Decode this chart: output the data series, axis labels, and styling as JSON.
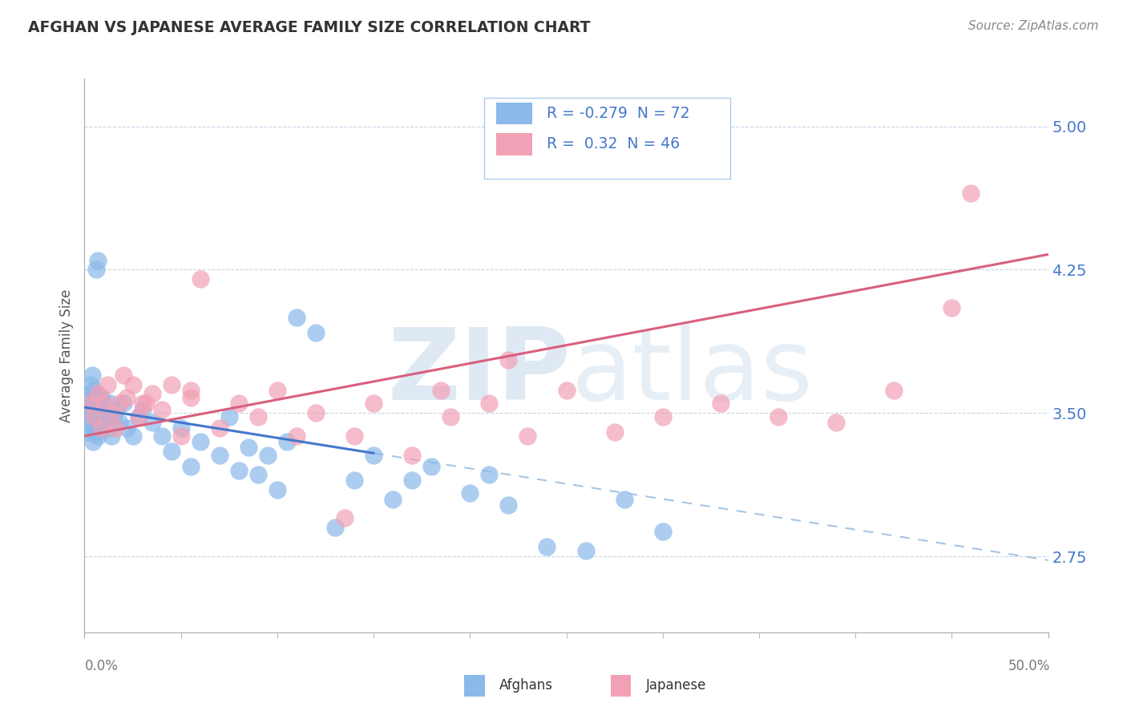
{
  "title": "AFGHAN VS JAPANESE AVERAGE FAMILY SIZE CORRELATION CHART",
  "source": "Source: ZipAtlas.com",
  "ylabel": "Average Family Size",
  "yticks": [
    2.75,
    3.5,
    4.25,
    5.0
  ],
  "xlim": [
    0.0,
    50.0
  ],
  "ylim": [
    2.35,
    5.25
  ],
  "afghan_R": -0.279,
  "afghan_N": 72,
  "japanese_R": 0.32,
  "japanese_N": 46,
  "afghan_color": "#8ab9ea",
  "japanese_color": "#f2a0b5",
  "afghan_line_color": "#4477cc",
  "japanese_line_color": "#d95f7e",
  "dash_color": "#99bbdd",
  "background_color": "#ffffff",
  "grid_color": "#c5d5e5",
  "watermark_color": "#c5d8ea",
  "title_color": "#333333",
  "axis_label_color": "#555555",
  "right_tick_color": "#4477cc",
  "bottom_tick_color": "#777777",
  "legend_border_color": "#aaccee",
  "legend_text_color": "#4477cc",
  "afghan_line_intercept": 3.53,
  "afghan_line_slope": -0.016,
  "japanese_line_intercept": 3.38,
  "japanese_line_slope": 0.019,
  "solid_line_end": 15.0,
  "scatter_seed_afg": 42,
  "scatter_seed_jpn": 99,
  "afg_x": [
    0.15,
    0.18,
    0.2,
    0.22,
    0.25,
    0.28,
    0.3,
    0.32,
    0.35,
    0.38,
    0.4,
    0.42,
    0.45,
    0.48,
    0.5,
    0.52,
    0.55,
    0.58,
    0.6,
    0.62,
    0.65,
    0.68,
    0.7,
    0.75,
    0.8,
    0.85,
    0.9,
    0.95,
    1.0,
    1.1,
    1.2,
    1.3,
    1.4,
    1.5,
    1.6,
    1.8,
    2.0,
    2.2,
    2.5,
    2.8,
    3.0,
    3.5,
    4.0,
    4.5,
    5.0,
    5.5,
    6.0,
    7.0,
    7.5,
    8.0,
    8.5,
    9.0,
    9.5,
    10.0,
    10.5,
    11.0,
    12.0,
    13.0,
    14.0,
    15.0,
    16.0,
    17.0,
    18.0,
    20.0,
    21.0,
    22.0,
    24.0,
    26.0,
    28.0,
    30.0,
    0.6,
    0.7
  ],
  "afg_y": [
    3.5,
    3.45,
    3.55,
    3.4,
    3.6,
    3.48,
    3.52,
    3.65,
    3.42,
    3.58,
    3.7,
    3.55,
    3.35,
    3.62,
    3.45,
    3.5,
    3.55,
    3.4,
    3.48,
    3.6,
    3.52,
    3.45,
    3.38,
    3.55,
    3.48,
    3.42,
    3.58,
    3.5,
    3.52,
    3.48,
    3.42,
    3.55,
    3.38,
    3.48,
    3.52,
    3.45,
    3.55,
    3.42,
    3.38,
    3.48,
    3.52,
    3.45,
    3.38,
    3.3,
    3.42,
    3.22,
    3.35,
    3.28,
    3.48,
    3.2,
    3.32,
    3.18,
    3.28,
    3.1,
    3.35,
    4.0,
    3.92,
    2.9,
    3.15,
    3.28,
    3.05,
    3.15,
    3.22,
    3.08,
    3.18,
    3.02,
    2.8,
    2.78,
    3.05,
    2.88,
    4.25,
    4.3
  ],
  "jpn_x": [
    0.3,
    0.5,
    0.7,
    0.9,
    1.0,
    1.2,
    1.4,
    1.6,
    1.8,
    2.0,
    2.2,
    2.5,
    2.8,
    3.0,
    3.5,
    4.0,
    4.5,
    5.0,
    5.5,
    6.0,
    7.0,
    8.0,
    9.0,
    10.0,
    11.0,
    12.0,
    13.5,
    15.0,
    17.0,
    19.0,
    21.0,
    23.0,
    25.0,
    27.5,
    30.0,
    33.0,
    36.0,
    39.0,
    42.0,
    45.0,
    3.2,
    5.5,
    14.0,
    18.5,
    22.0,
    46.0
  ],
  "jpn_y": [
    3.55,
    3.48,
    3.6,
    3.42,
    3.55,
    3.65,
    3.5,
    3.42,
    3.55,
    3.7,
    3.58,
    3.65,
    3.48,
    3.55,
    3.6,
    3.52,
    3.65,
    3.38,
    3.58,
    4.2,
    3.42,
    3.55,
    3.48,
    3.62,
    3.38,
    3.5,
    2.95,
    3.55,
    3.28,
    3.48,
    3.55,
    3.38,
    3.62,
    3.4,
    3.48,
    3.55,
    3.48,
    3.45,
    3.62,
    4.05,
    3.55,
    3.62,
    3.38,
    3.62,
    3.78,
    4.65
  ]
}
